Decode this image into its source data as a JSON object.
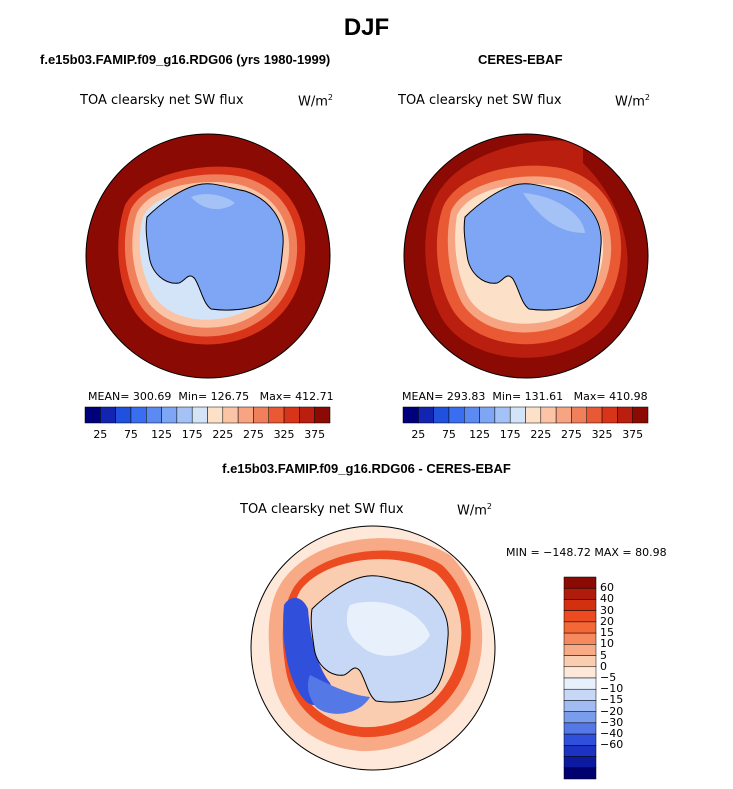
{
  "title": "DJF",
  "units_base": "W/m",
  "units_exp": "2",
  "panels": [
    {
      "case": "f.e15b03.FAMIP.f09_g16.RDG06 (yrs 1980-1999)",
      "variable": "TOA clearsky net SW flux",
      "mean_label": "MEAN=",
      "mean": "300.69",
      "min_label": "Min=",
      "min": "126.75",
      "max_label": "Max=",
      "max": "412.71"
    },
    {
      "case": "CERES-EBAF",
      "variable": "TOA clearsky net SW flux",
      "mean_label": "MEAN=",
      "mean": "293.83",
      "min_label": "Min=",
      "min": "131.61",
      "max_label": "Max=",
      "max": "410.98"
    }
  ],
  "colorbar": {
    "colors": [
      "#00007a",
      "#1224b0",
      "#2050de",
      "#3a6ef0",
      "#5a8af2",
      "#7ea6f4",
      "#a4c2f6",
      "#d4e4f8",
      "#fde0c8",
      "#fbc4a6",
      "#f7a482",
      "#f07f5c",
      "#e95a34",
      "#d8341a",
      "#ba1e0e",
      "#8c0a04"
    ],
    "tick_labels": [
      "25",
      "75",
      "125",
      "175",
      "225",
      "275",
      "325",
      "375"
    ]
  },
  "difference": {
    "title": "f.e15b03.FAMIP.f09_g16.RDG06 - CERES-EBAF",
    "variable": "TOA clearsky net SW flux",
    "min_max": "MIN = −148.72  MAX =  80.98",
    "colors": [
      "#8c0a04",
      "#b01c0c",
      "#d2300e",
      "#ec4a20",
      "#f46838",
      "#f68a5e",
      "#f8aa86",
      "#fbcdb0",
      "#fde8da",
      "#e8f0fc",
      "#c6d8f6",
      "#a0bcf2",
      "#7a9cec",
      "#5478e6",
      "#3050dc",
      "#1c32c2",
      "#0c1aa0",
      "#000070"
    ],
    "tick_labels": [
      "60",
      "40",
      "30",
      "20",
      "15",
      "10",
      "5",
      "0",
      "−5",
      "−10",
      "−15",
      "−20",
      "−30",
      "−40",
      "−60"
    ]
  }
}
